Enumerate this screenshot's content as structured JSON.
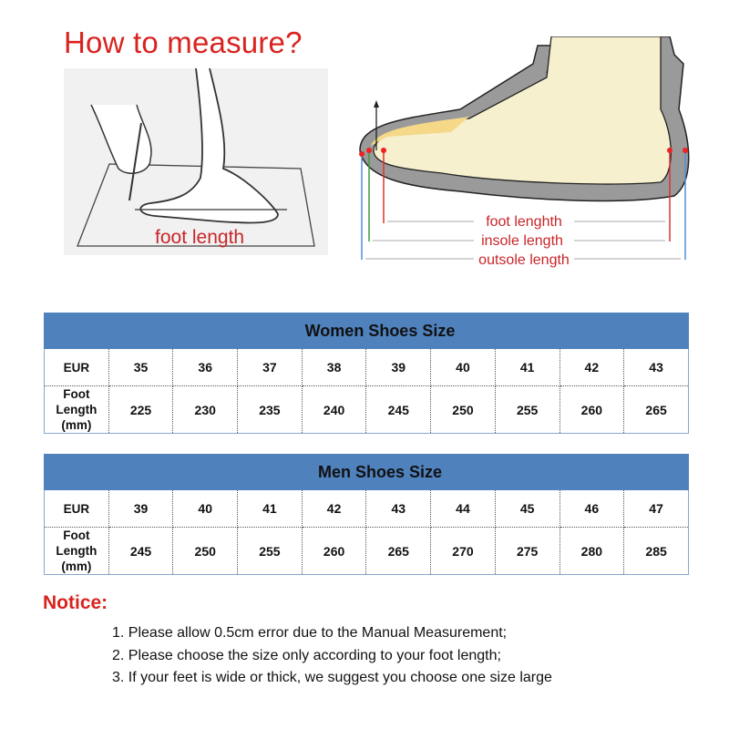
{
  "title": "How to measure?",
  "left_illustration": {
    "label": "foot length"
  },
  "right_illustration": {
    "labels": [
      "foot lenghth",
      "insole length",
      "outsole length"
    ]
  },
  "tables": [
    {
      "title": "Women Shoes Size",
      "rows": [
        {
          "label": "EUR",
          "values": [
            "35",
            "36",
            "37",
            "38",
            "39",
            "40",
            "41",
            "42",
            "43"
          ]
        },
        {
          "label": "Foot Length (mm)",
          "values": [
            "225",
            "230",
            "235",
            "240",
            "245",
            "250",
            "255",
            "260",
            "265"
          ]
        }
      ]
    },
    {
      "title": "Men Shoes Size",
      "rows": [
        {
          "label": "EUR",
          "values": [
            "39",
            "40",
            "41",
            "42",
            "43",
            "44",
            "45",
            "46",
            "47"
          ]
        },
        {
          "label": "Foot Length (mm)",
          "values": [
            "245",
            "250",
            "255",
            "260",
            "265",
            "270",
            "275",
            "280",
            "285"
          ]
        }
      ]
    }
  ],
  "notice": {
    "heading": "Notice:",
    "items": [
      "1. Please allow 0.5cm error due to the Manual Measurement;",
      "2. Please choose the size only according to your foot length;",
      "3. If your feet is wide or thick, we suggest you choose one size large"
    ]
  },
  "colors": {
    "header_blue": "#4f81bd",
    "accent_red": "#d8231f"
  }
}
